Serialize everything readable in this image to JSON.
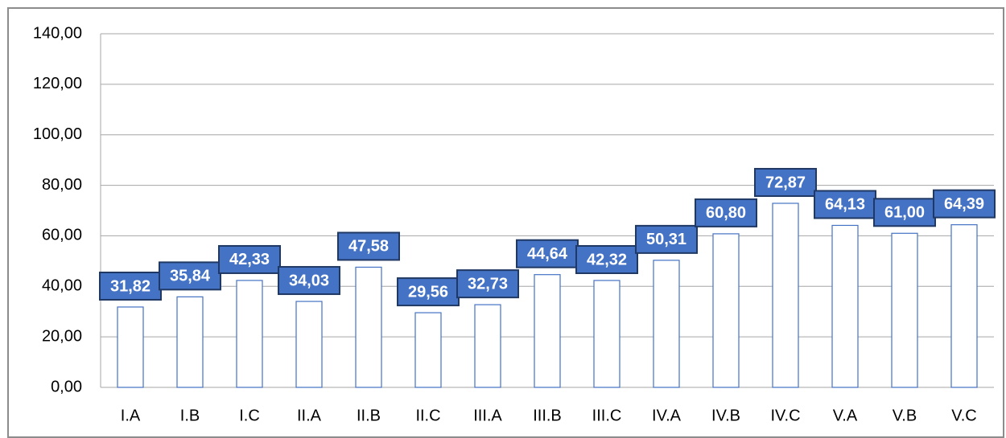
{
  "chart_data": {
    "type": "bar",
    "categories": [
      "I.A",
      "I.B",
      "I.C",
      "II.A",
      "II.B",
      "II.C",
      "III.A",
      "III.B",
      "III.C",
      "IV.A",
      "IV.B",
      "IV.C",
      "V.A",
      "V.B",
      "V.C"
    ],
    "values": [
      31.82,
      35.84,
      42.33,
      34.03,
      47.58,
      29.56,
      32.73,
      44.64,
      42.32,
      50.31,
      60.8,
      72.87,
      64.13,
      61.0,
      64.39
    ],
    "value_labels": [
      "31,82",
      "35,84",
      "42,33",
      "34,03",
      "47,58",
      "29,56",
      "32,73",
      "44,64",
      "42,32",
      "50,31",
      "60,80",
      "72,87",
      "64,13",
      "61,00",
      "64,39"
    ],
    "color": "#4472c4",
    "ylim": [
      0,
      140
    ],
    "yticks": [
      {
        "value": 0,
        "label": "0,00"
      },
      {
        "value": 20,
        "label": "20,00"
      },
      {
        "value": 40,
        "label": "40,00"
      },
      {
        "value": 60,
        "label": "60,00"
      },
      {
        "value": 80,
        "label": "80,00"
      },
      {
        "value": 100,
        "label": "100,00"
      },
      {
        "value": 120,
        "label": "120,00"
      },
      {
        "value": 140,
        "label": "140,00"
      }
    ],
    "grid": true
  }
}
